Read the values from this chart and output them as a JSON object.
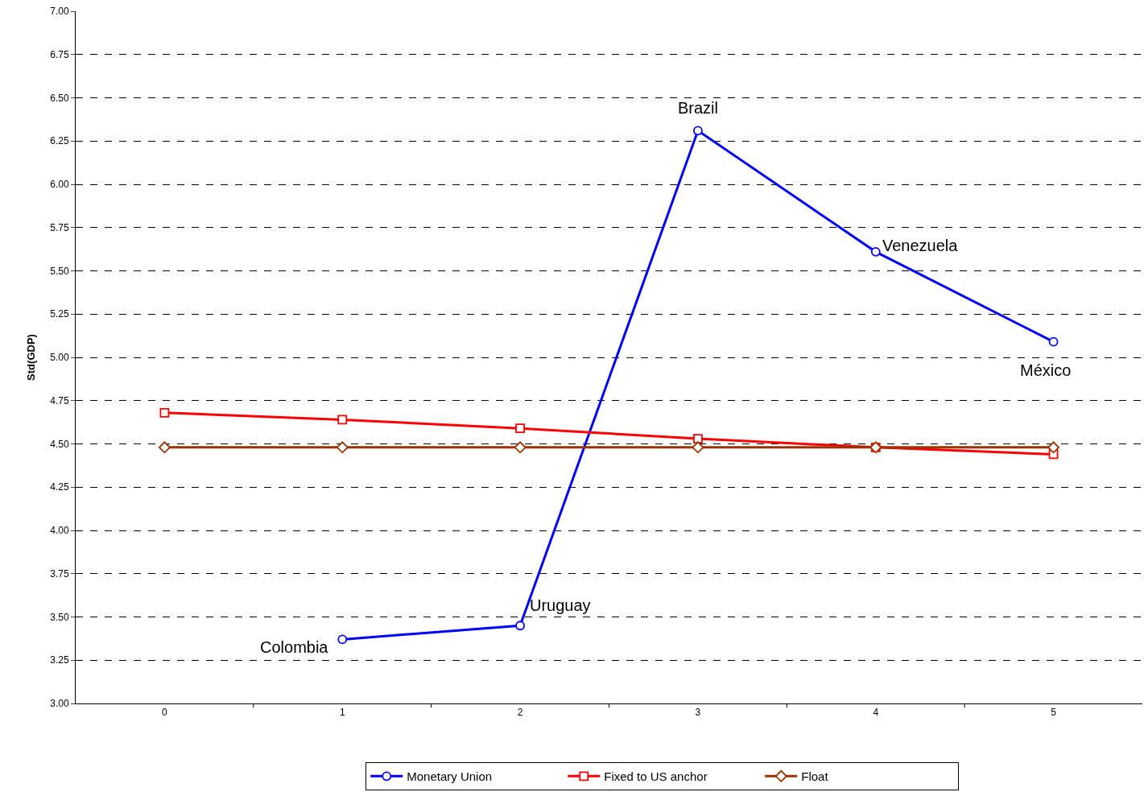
{
  "chart_data": {
    "type": "line",
    "ylabel": "Std(GDP)",
    "categories": [
      "0",
      "1",
      "2",
      "3",
      "4",
      "5"
    ],
    "series": [
      {
        "name": "Monetary Union",
        "color": "#0000ff",
        "marker": "circle",
        "values": [
          null,
          3.37,
          3.45,
          6.31,
          5.61,
          5.09
        ]
      },
      {
        "name": "Fixed to US anchor",
        "color": "#ff0000",
        "marker": "square",
        "values": [
          4.68,
          4.64,
          4.59,
          4.53,
          4.48,
          4.44
        ]
      },
      {
        "name": "Float",
        "color": "#993300",
        "marker": "diamond",
        "values": [
          4.48,
          4.48,
          4.48,
          4.48,
          4.48,
          4.48
        ]
      }
    ],
    "ylim": [
      3.0,
      7.0
    ],
    "yticks": [
      {
        "value": 3.0,
        "label": "3.00"
      },
      {
        "value": 3.25,
        "label": "3.25"
      },
      {
        "value": 3.5,
        "label": "3.50"
      },
      {
        "value": 3.75,
        "label": "3.75"
      },
      {
        "value": 4.0,
        "label": "4.00"
      },
      {
        "value": 4.25,
        "label": "4.25"
      },
      {
        "value": 4.5,
        "label": "4.50"
      },
      {
        "value": 4.75,
        "label": "4.75"
      },
      {
        "value": 5.0,
        "label": "5.00"
      },
      {
        "value": 5.25,
        "label": "5.25"
      },
      {
        "value": 5.5,
        "label": "5.50"
      },
      {
        "value": 5.75,
        "label": "5.75"
      },
      {
        "value": 6.0,
        "label": "6.00"
      },
      {
        "value": 6.25,
        "label": "6.25"
      },
      {
        "value": 6.5,
        "label": "6.50"
      },
      {
        "value": 6.75,
        "label": "6.75"
      },
      {
        "value": 7.0,
        "label": "7.00"
      }
    ],
    "grid": "y",
    "legend": "bottom",
    "line_style": "solid",
    "annotations": [
      {
        "text": "Colombia",
        "x": "1",
        "y": 3.37
      },
      {
        "text": "Uruguay",
        "x": "2",
        "y": 3.45
      },
      {
        "text": "Brazil",
        "x": "3",
        "y": 6.31
      },
      {
        "text": "Venezuela",
        "x": "4",
        "y": 5.61
      },
      {
        "text": "México",
        "x": "5",
        "y": 5.09
      }
    ]
  }
}
